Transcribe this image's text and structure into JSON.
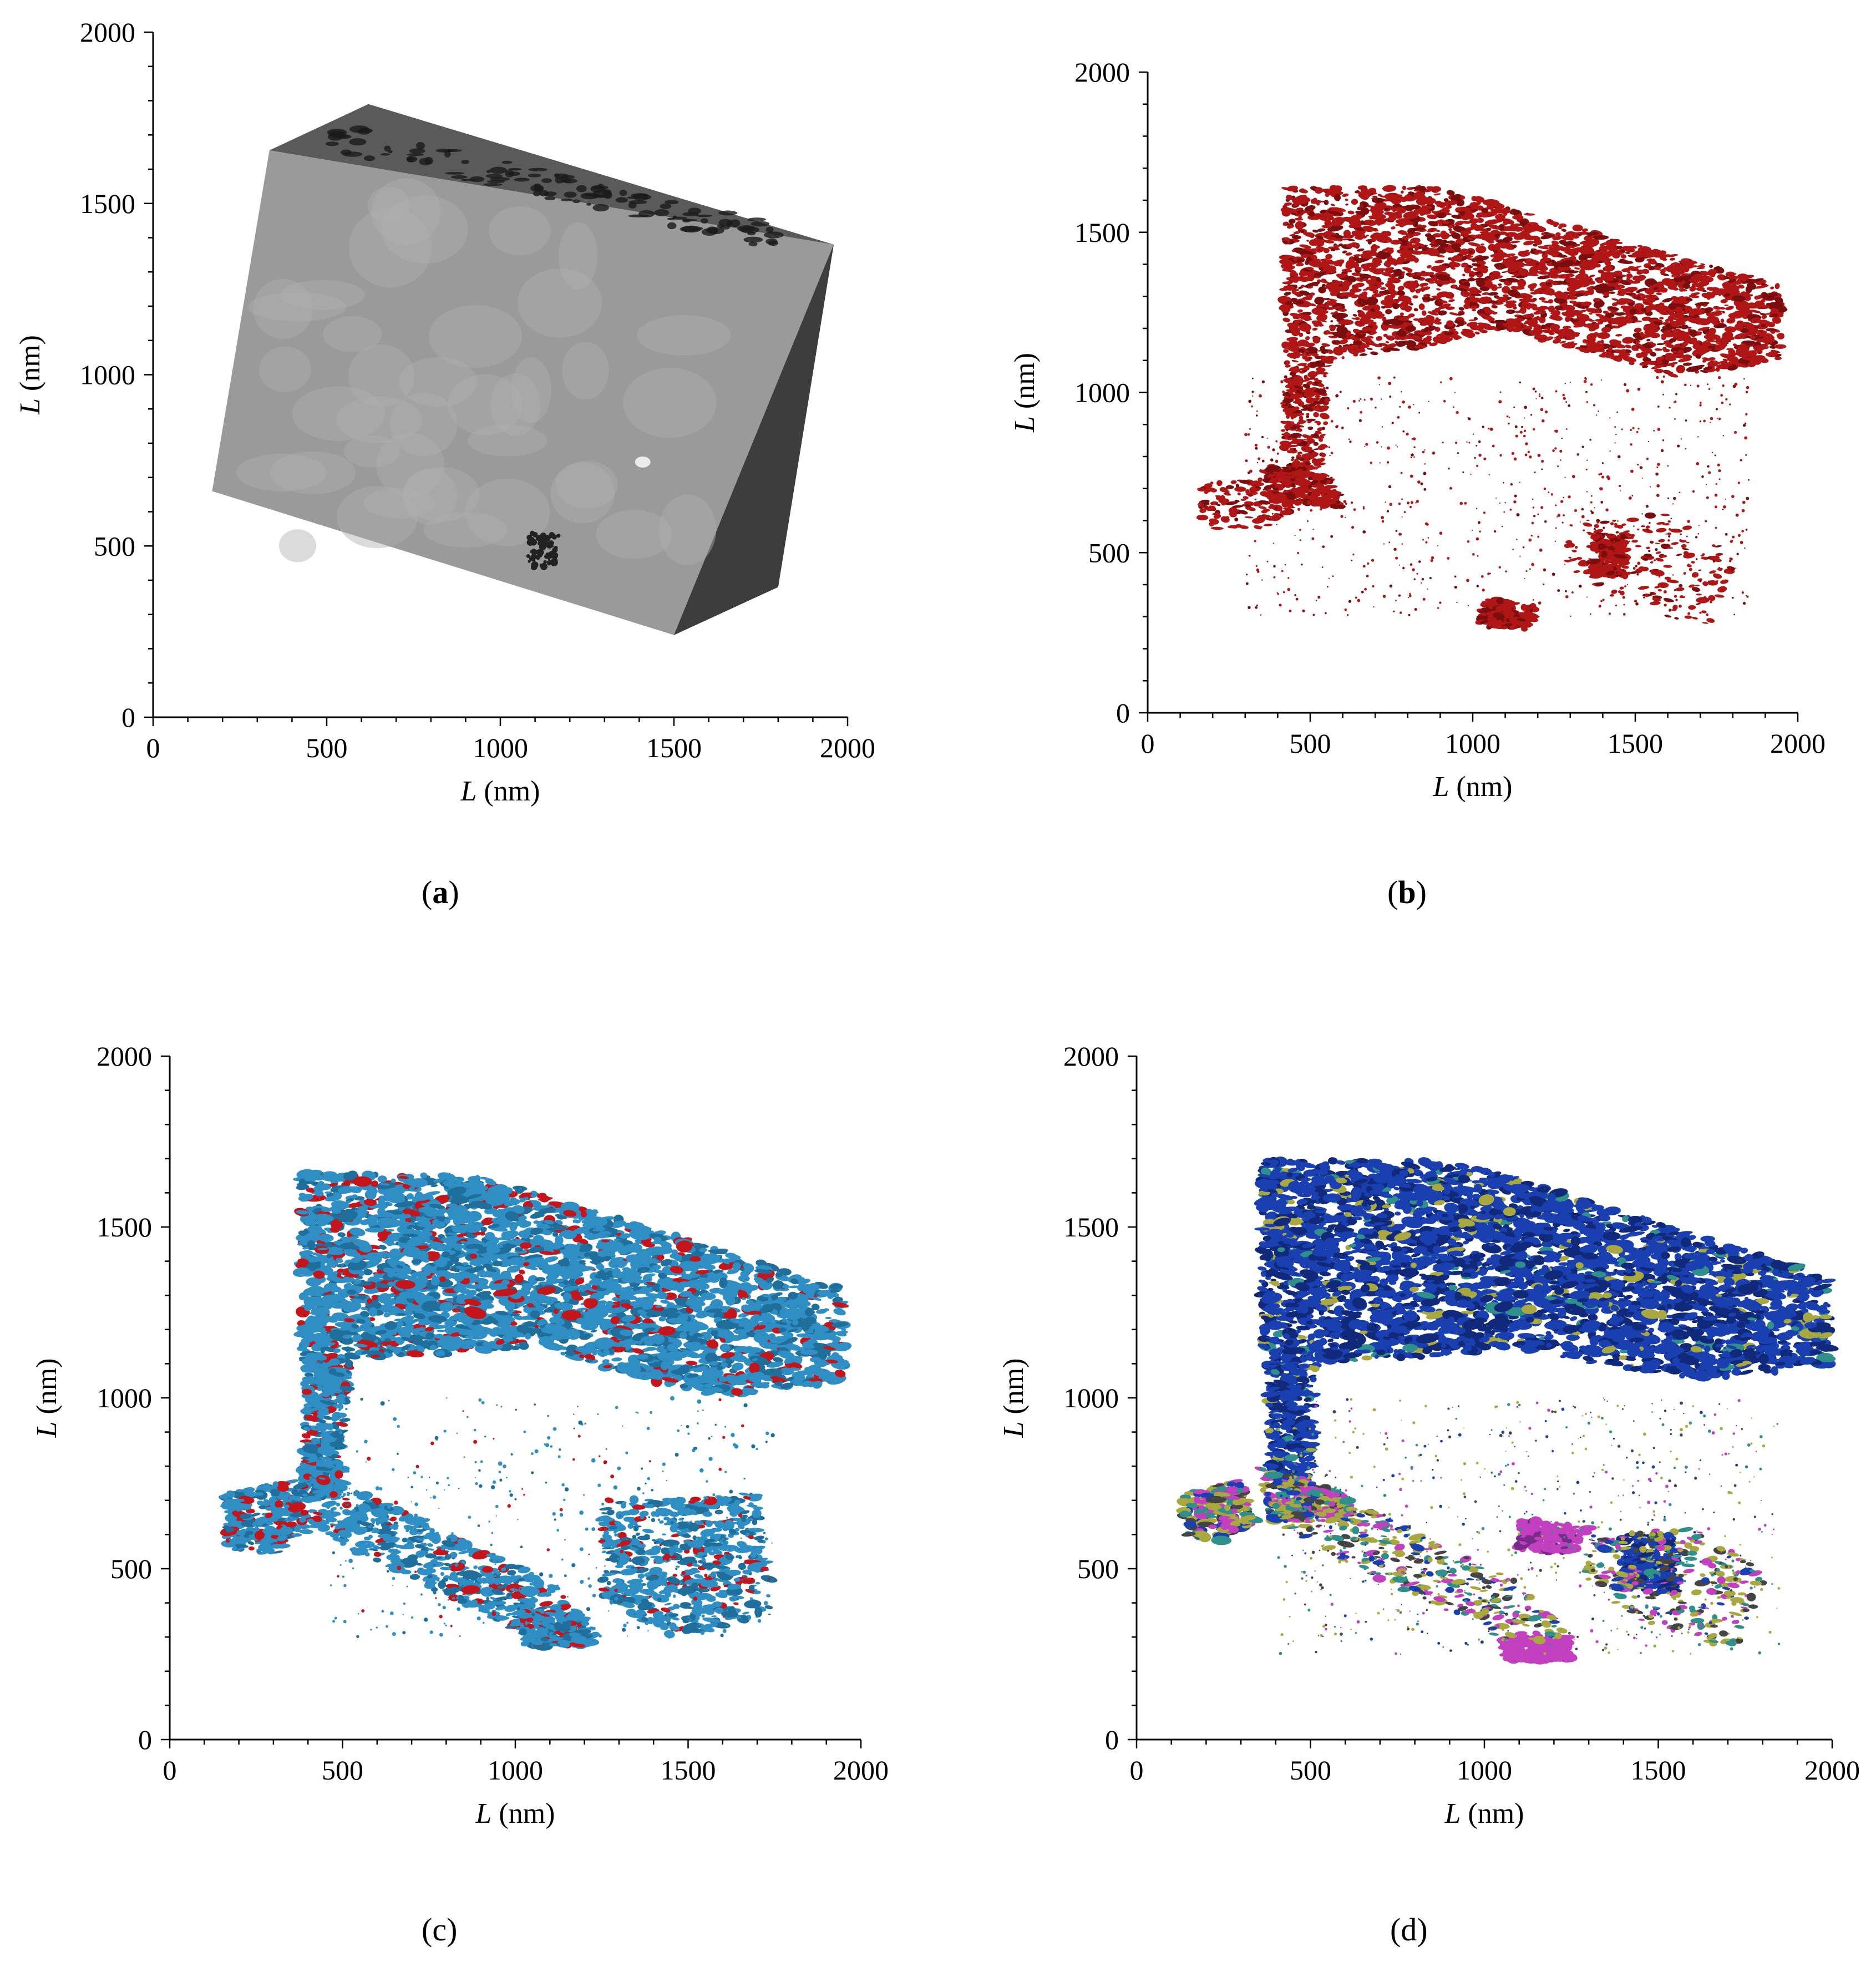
{
  "panels": [
    {
      "id": "a",
      "caption": "a",
      "render": "grayscale-block",
      "axes": {
        "x_label_var": "L",
        "x_label_unit": "(nm)",
        "y_label_var": "L",
        "y_label_unit": "(nm)",
        "xlim": [
          0,
          2000
        ],
        "ylim": [
          0,
          2000
        ],
        "x_ticks": [
          "0",
          "500",
          "1000",
          "1500",
          "2000"
        ],
        "y_ticks": [
          "0",
          "500",
          "1000",
          "1500",
          "2000"
        ]
      },
      "colors": {
        "front": "#9a9a9a",
        "side": "#3d3d3d",
        "top": "#5a5a5a"
      }
    },
    {
      "id": "b",
      "caption": "b",
      "render": "red-pores",
      "axes": {
        "x_label_var": "L",
        "x_label_unit": "(nm)",
        "y_label_var": "L",
        "y_label_unit": "(nm)",
        "xlim": [
          0,
          2000
        ],
        "ylim": [
          0,
          2000
        ],
        "x_ticks": [
          "0",
          "500",
          "1000",
          "1500",
          "2000"
        ],
        "y_ticks": [
          "0",
          "500",
          "1000",
          "1500",
          "2000"
        ]
      },
      "colors": {
        "primary": "#b01616"
      }
    },
    {
      "id": "c",
      "caption": "c",
      "render": "blue-red-pores",
      "axes": {
        "x_label_var": "L",
        "x_label_unit": "(nm)",
        "y_label_var": "L",
        "y_label_unit": "(nm)",
        "xlim": [
          0,
          2000
        ],
        "ylim": [
          0,
          2000
        ],
        "x_ticks": [
          "0",
          "500",
          "1000",
          "1500",
          "2000"
        ],
        "y_ticks": [
          "0",
          "500",
          "1000",
          "1500",
          "2000"
        ]
      },
      "colors": {
        "primary": "#2f8fc4",
        "secondary": "#c3151b"
      }
    },
    {
      "id": "d",
      "caption": "d",
      "render": "multicolor-pores",
      "axes": {
        "x_label_var": "L",
        "x_label_unit": "(nm)",
        "y_label_var": "L",
        "y_label_unit": "(nm)",
        "xlim": [
          0,
          2000
        ],
        "ylim": [
          0,
          2000
        ],
        "x_ticks": [
          "0",
          "500",
          "1000",
          "1500",
          "2000"
        ],
        "y_ticks": [
          "0",
          "500",
          "1000",
          "1500",
          "2000"
        ]
      },
      "colors": {
        "primary": "#1a3fb0",
        "magenta": "#c23fc0",
        "olive": "#a9a840",
        "teal": "#2f8f8a"
      }
    }
  ]
}
